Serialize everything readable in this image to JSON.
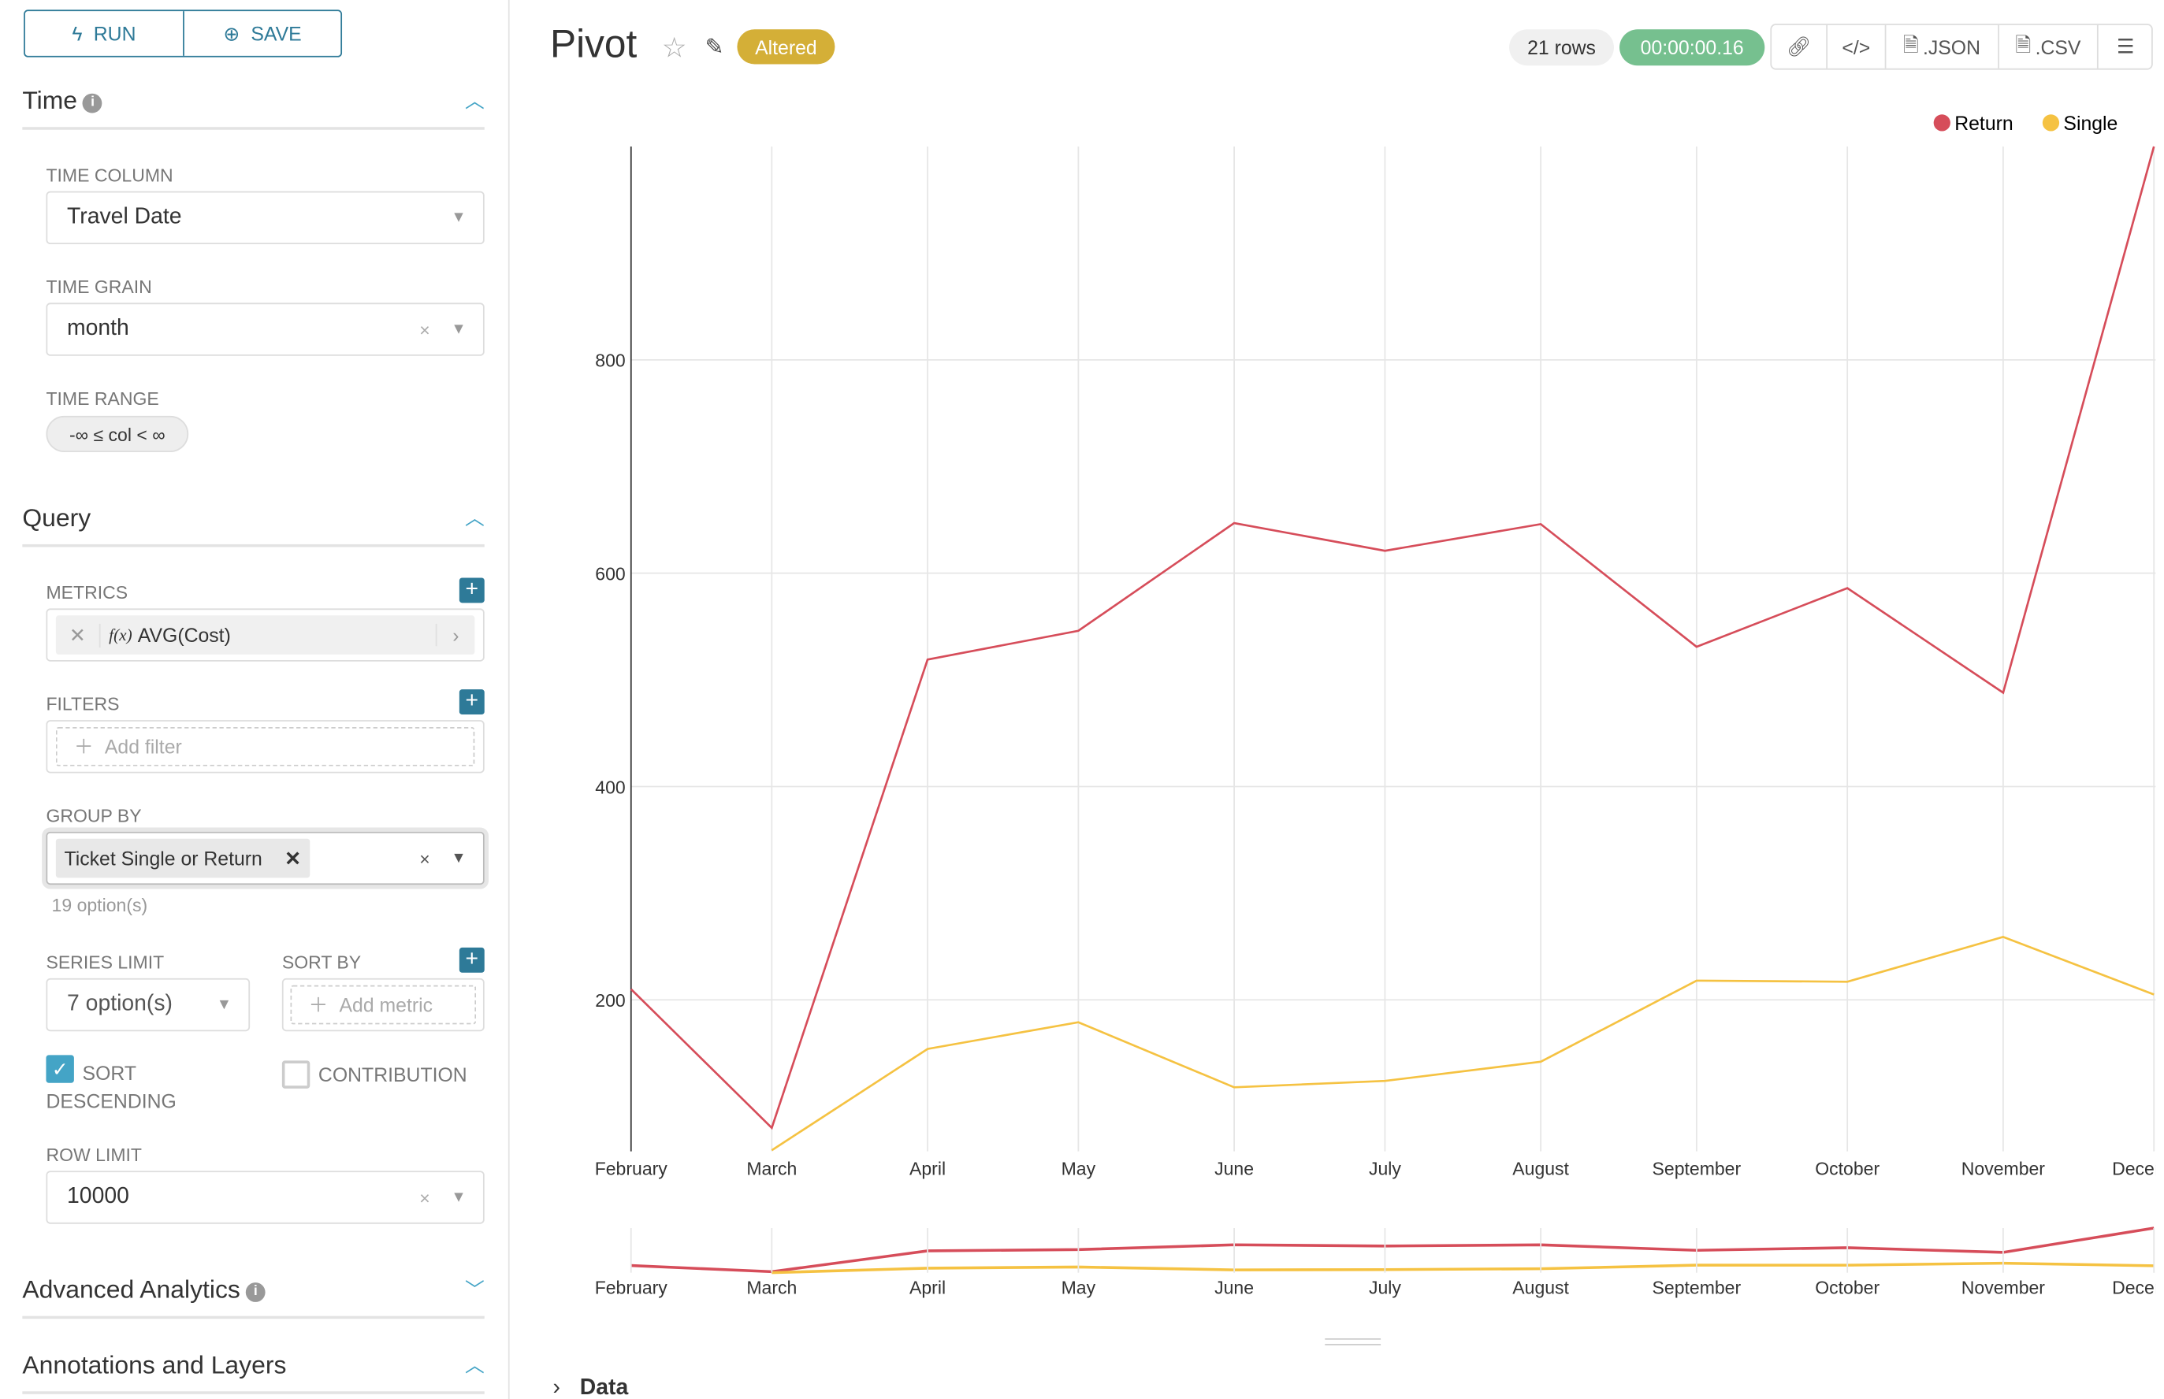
{
  "toolbar": {
    "run_label": "RUN",
    "save_label": "SAVE"
  },
  "time": {
    "title": "Time",
    "time_column_label": "TIME COLUMN",
    "time_column_value": "Travel Date",
    "time_grain_label": "TIME GRAIN",
    "time_grain_value": "month",
    "time_range_label": "TIME RANGE",
    "time_range_value": "-∞ ≤ col < ∞"
  },
  "query": {
    "title": "Query",
    "metrics_label": "METRICS",
    "metric": "AVG(Cost)",
    "metric_prefix": "f(x)",
    "filters_label": "FILTERS",
    "add_filter": "Add filter",
    "group_by_label": "GROUP BY",
    "group_by_tag": "Ticket Single or Return",
    "group_by_options": "19 option(s)",
    "series_limit_label": "SERIES LIMIT",
    "series_limit_value": "7 option(s)",
    "sort_by_label": "SORT BY",
    "add_metric": "Add metric",
    "sort_desc_label": "SORT DESCENDING",
    "sort_desc_checked": true,
    "contribution_label": "CONTRIBUTION",
    "contribution_checked": false,
    "row_limit_label": "ROW LIMIT",
    "row_limit_value": "10000"
  },
  "sections": {
    "advanced": "Advanced Analytics",
    "annotations": "Annotations and Layers"
  },
  "header": {
    "title": "Pivot",
    "status": "Altered",
    "rows": "21 rows",
    "duration": "00:00:00.16",
    "json": ".JSON",
    "csv": ".CSV"
  },
  "data_section": "Data",
  "colors": {
    "accent": "#2e7a98",
    "altered": "#d4af37",
    "timer": "#76c08f",
    "return": "#d64d5a",
    "single": "#f5c242"
  },
  "chart_data": {
    "type": "line",
    "categories": [
      "February",
      "March",
      "April",
      "May",
      "June",
      "July",
      "August",
      "September",
      "October",
      "November",
      "December"
    ],
    "series": [
      {
        "name": "Return",
        "color": "#d64d5a",
        "values": [
          210,
          80,
          519,
          546,
          647,
          621,
          646,
          531,
          586,
          488,
          1000
        ]
      },
      {
        "name": "Single",
        "color": "#f5c242",
        "values": [
          null,
          59,
          154,
          179,
          118,
          124,
          142,
          218,
          217,
          259,
          205
        ]
      }
    ],
    "yticks": [
      200,
      400,
      600,
      800
    ],
    "ylim": [
      58,
      1000
    ],
    "grid": true,
    "legend": "top-right",
    "brush": true
  }
}
